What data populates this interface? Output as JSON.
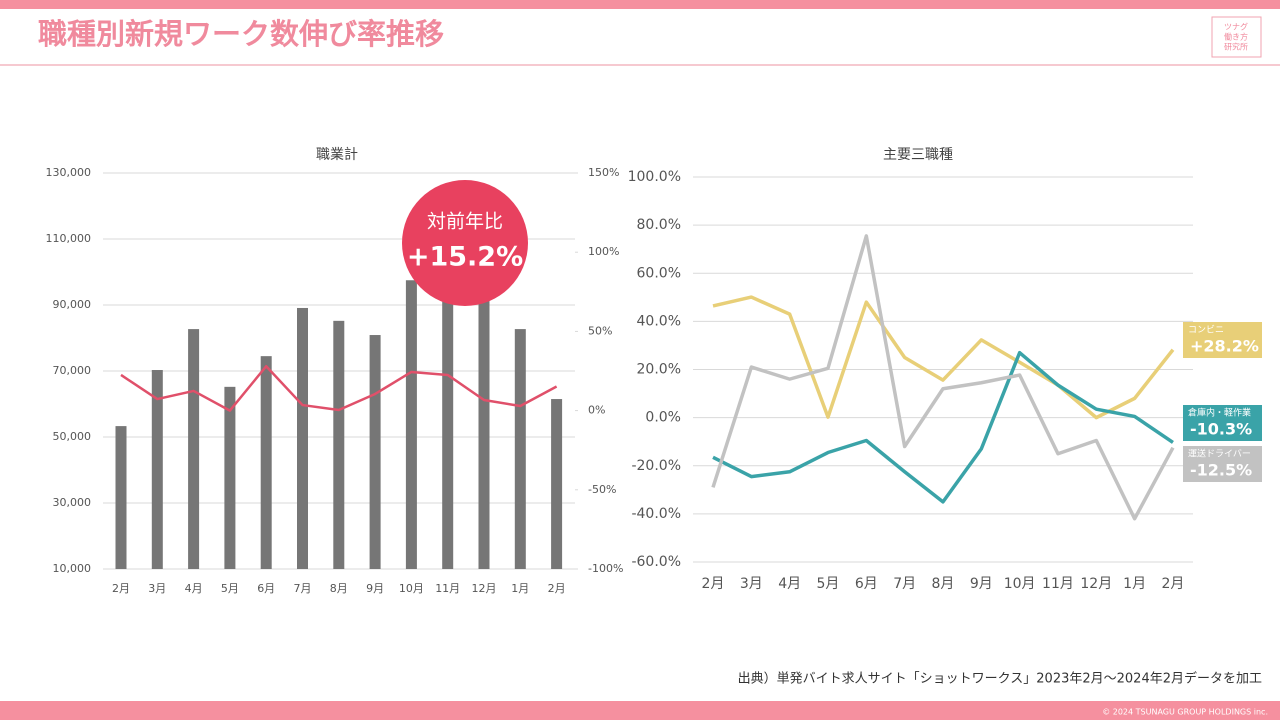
{
  "header": {
    "title": "職種別新規ワーク数伸び率推移",
    "logo": [
      "ツナグ",
      "働き方",
      "研究所"
    ]
  },
  "source": "出典）単発バイト求人サイト「ショットワークス」2023年2月～2024年2月データを加工",
  "copyright": "© 2024 TSUNAGU GROUP HOLDINGS inc.",
  "chart_data": [
    {
      "type": "bar",
      "title": "職業計",
      "categories": [
        "2月",
        "3月",
        "4月",
        "5月",
        "6月",
        "7月",
        "8月",
        "9月",
        "10月",
        "11月",
        "12月",
        "1月",
        "2月"
      ],
      "series": [
        {
          "type": "bar",
          "color": "#767676",
          "values": [
            53300,
            70300,
            82700,
            65200,
            74500,
            89100,
            85200,
            80900,
            97500,
            95000,
            93000,
            82700,
            61500
          ]
        },
        {
          "type": "line",
          "axis": "y2",
          "color": "#e0506a",
          "values": [
            22.5,
            7.3,
            12.4,
            0,
            28,
            3.5,
            0.4,
            10.5,
            24.4,
            22.5,
            6.7,
            2.9,
            15.2
          ]
        }
      ],
      "ylim": [
        10000,
        130000
      ],
      "yticks": [
        {
          "value": 10000,
          "label": "10,000"
        },
        {
          "value": 30000,
          "label": "30,000"
        },
        {
          "value": 50000,
          "label": "50,000"
        },
        {
          "value": 70000,
          "label": "70,000"
        },
        {
          "value": 90000,
          "label": "90,000"
        },
        {
          "value": 110000,
          "label": "110,000"
        },
        {
          "value": 130000,
          "label": "130,000"
        }
      ],
      "y2lim": [
        -100,
        150
      ],
      "y2ticks": [
        {
          "value": -100,
          "label": "-100%"
        },
        {
          "value": -50,
          "label": "-50%"
        },
        {
          "value": 0,
          "label": "0%"
        },
        {
          "value": 50,
          "label": "50%"
        },
        {
          "value": 100,
          "label": "100%"
        },
        {
          "value": 150,
          "label": "150%"
        }
      ],
      "grid": true,
      "annotation": {
        "title": "対前年比",
        "text": "+15.2%",
        "value": 15.2,
        "color": "#e8415f"
      }
    },
    {
      "type": "line",
      "title": "主要三職種",
      "categories": [
        "2月",
        "3月",
        "4月",
        "5月",
        "6月",
        "7月",
        "8月",
        "9月",
        "10月",
        "11月",
        "12月",
        "1月",
        "2月"
      ],
      "series": [
        {
          "name": "コンビニ",
          "color": "#e8cf78",
          "values": [
            46.4,
            50.1,
            43,
            0.2,
            48,
            25,
            15.6,
            32.3,
            23,
            13.5,
            0,
            8,
            28.2
          ],
          "end_label": "+28.2%"
        },
        {
          "name": "倉庫内・軽作業",
          "color": "#3aa3a8",
          "values": [
            -16.5,
            -24.5,
            -22.5,
            -14.5,
            -9.5,
            -22.5,
            -35,
            -13,
            27,
            13.5,
            3.5,
            0.5,
            -10.3
          ],
          "end_label": "-10.3%"
        },
        {
          "name": "運送ドライバー",
          "color": "#c2c2c2",
          "values": [
            -29,
            21,
            16,
            20.5,
            75.5,
            -12,
            12,
            14.5,
            17.7,
            -15,
            -9.5,
            -42,
            -12.5
          ],
          "end_label": "-12.5%"
        }
      ],
      "ylim": [
        -60,
        100
      ],
      "yticks": [
        {
          "value": -60,
          "label": "-60.0%"
        },
        {
          "value": -40,
          "label": "-40.0%"
        },
        {
          "value": -20,
          "label": "-20.0%"
        },
        {
          "value": 0,
          "label": "0.0%"
        },
        {
          "value": 20,
          "label": "20.0%"
        },
        {
          "value": 40,
          "label": "40.0%"
        },
        {
          "value": 60,
          "label": "60.0%"
        },
        {
          "value": 80,
          "label": "80.0%"
        },
        {
          "value": 100,
          "label": "100.0%"
        }
      ],
      "grid": true
    }
  ]
}
